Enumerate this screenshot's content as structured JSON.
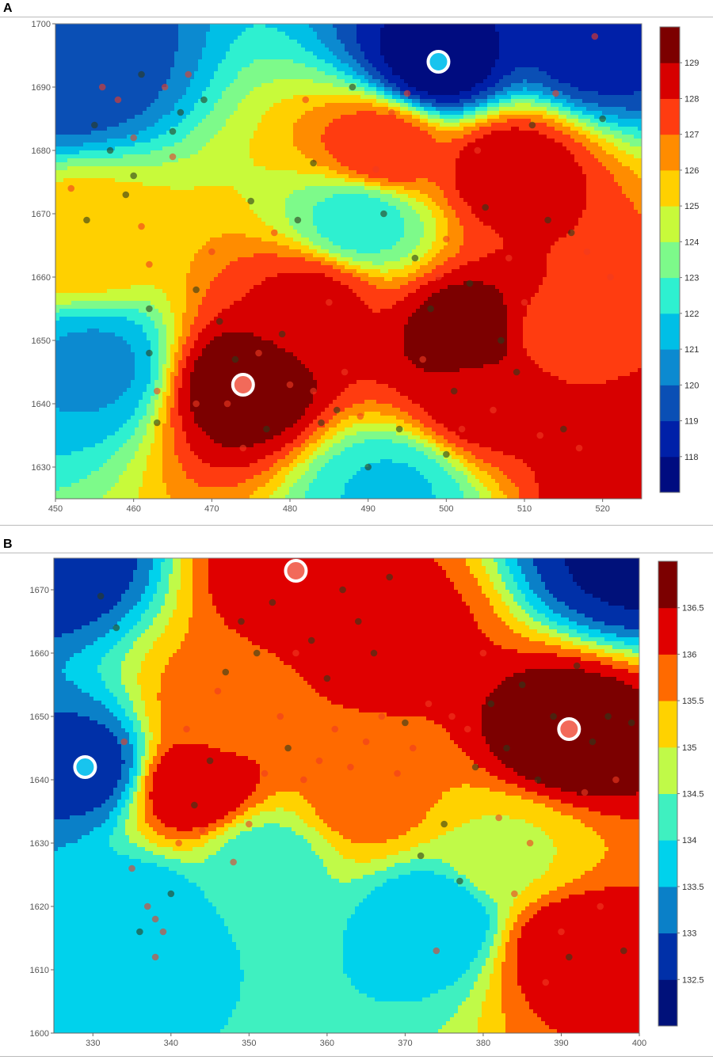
{
  "panels": [
    {
      "letter": "A",
      "chart_data": {
        "type": "heatmap",
        "title": "",
        "xlabel": "",
        "ylabel": "",
        "xlim": [
          450,
          525
        ],
        "ylim": [
          1625,
          1700
        ],
        "x_ticks": [
          "450",
          "460",
          "470",
          "480",
          "490",
          "500",
          "510",
          "520"
        ],
        "y_ticks": [
          "1630",
          "1640",
          "1650",
          "1660",
          "1670",
          "1680",
          "1690",
          "1700"
        ],
        "colorbar": {
          "range": [
            117.5,
            129.5
          ],
          "labels": [
            "118",
            "119",
            "120",
            "121",
            "122",
            "123",
            "124",
            "125",
            "126",
            "127",
            "128",
            "129"
          ],
          "colors": [
            "#000c80",
            "#0020a8",
            "#0a4fb5",
            "#0c8ad0",
            "#00bfe6",
            "#2ef0d0",
            "#7dfa8a",
            "#c8fa3a",
            "#ffd000",
            "#ff8c00",
            "#ff3c10",
            "#d70000",
            "#7c0000"
          ]
        },
        "field_base": 123.6,
        "extrema": [
          {
            "x": 474,
            "y": 1643,
            "value": 129.3
          },
          {
            "x": 503,
            "y": 1651,
            "value": 129.2
          },
          {
            "x": 499,
            "y": 1694,
            "value": 117.8
          },
          {
            "x": 451,
            "y": 1693,
            "value": 119.4
          },
          {
            "x": 519,
            "y": 1697,
            "value": 118.8
          },
          {
            "x": 492,
            "y": 1680,
            "value": 127.5
          },
          {
            "x": 508,
            "y": 1677,
            "value": 128.3
          },
          {
            "x": 524,
            "y": 1628,
            "value": 128.5
          },
          {
            "x": 514,
            "y": 1651,
            "value": 127.4
          },
          {
            "x": 493,
            "y": 1626,
            "value": 122.0
          },
          {
            "x": 455,
            "y": 1646,
            "value": 121.0
          },
          {
            "x": 453,
            "y": 1665,
            "value": 125.6
          },
          {
            "x": 489,
            "y": 1669,
            "value": 122.6
          },
          {
            "x": 505,
            "y": 1641,
            "value": 128.2
          },
          {
            "x": 483,
            "y": 1656,
            "value": 127.9
          }
        ],
        "highlighted_markers": [
          {
            "x": 474,
            "y": 1643,
            "kind": "max"
          },
          {
            "x": 499,
            "y": 1694,
            "kind": "min"
          }
        ],
        "observation_points": [
          [
            452,
            1674,
            "r"
          ],
          [
            454,
            1669,
            "d"
          ],
          [
            455,
            1684,
            "d"
          ],
          [
            456,
            1690,
            "r"
          ],
          [
            457,
            1680,
            "d"
          ],
          [
            458,
            1688,
            "r"
          ],
          [
            459,
            1673,
            "d"
          ],
          [
            460,
            1682,
            "r"
          ],
          [
            460,
            1676,
            "d"
          ],
          [
            461,
            1668,
            "r"
          ],
          [
            461,
            1692,
            "d"
          ],
          [
            462,
            1662,
            "r"
          ],
          [
            462,
            1655,
            "d"
          ],
          [
            462,
            1648,
            "d"
          ],
          [
            463,
            1642,
            "r"
          ],
          [
            463,
            1637,
            "d"
          ],
          [
            464,
            1690,
            "r"
          ],
          [
            465,
            1683,
            "d"
          ],
          [
            465,
            1679,
            "r"
          ],
          [
            466,
            1686,
            "d"
          ],
          [
            467,
            1692,
            "r"
          ],
          [
            468,
            1658,
            "d"
          ],
          [
            468,
            1640,
            "r"
          ],
          [
            469,
            1688,
            "d"
          ],
          [
            470,
            1664,
            "r"
          ],
          [
            471,
            1653,
            "d"
          ],
          [
            472,
            1640,
            "r"
          ],
          [
            473,
            1647,
            "d"
          ],
          [
            474,
            1633,
            "r"
          ],
          [
            475,
            1672,
            "d"
          ],
          [
            476,
            1648,
            "r"
          ],
          [
            477,
            1636,
            "d"
          ],
          [
            478,
            1667,
            "r"
          ],
          [
            479,
            1651,
            "d"
          ],
          [
            480,
            1643,
            "r"
          ],
          [
            481,
            1669,
            "d"
          ],
          [
            482,
            1688,
            "r"
          ],
          [
            483,
            1678,
            "d"
          ],
          [
            483,
            1642,
            "r"
          ],
          [
            484,
            1637,
            "d"
          ],
          [
            485,
            1656,
            "r"
          ],
          [
            486,
            1639,
            "d"
          ],
          [
            487,
            1645,
            "r"
          ],
          [
            488,
            1690,
            "d"
          ],
          [
            489,
            1638,
            "r"
          ],
          [
            490,
            1630,
            "d"
          ],
          [
            491,
            1677,
            "r"
          ],
          [
            492,
            1670,
            "d"
          ],
          [
            493,
            1686,
            "r"
          ],
          [
            494,
            1636,
            "d"
          ],
          [
            495,
            1689,
            "r"
          ],
          [
            496,
            1663,
            "d"
          ],
          [
            497,
            1647,
            "r"
          ],
          [
            498,
            1655,
            "d"
          ],
          [
            499,
            1660,
            "r"
          ],
          [
            500,
            1632,
            "d"
          ],
          [
            500,
            1666,
            "r"
          ],
          [
            501,
            1642,
            "d"
          ],
          [
            502,
            1636,
            "r"
          ],
          [
            503,
            1659,
            "d"
          ],
          [
            504,
            1680,
            "r"
          ],
          [
            505,
            1671,
            "d"
          ],
          [
            506,
            1639,
            "r"
          ],
          [
            507,
            1650,
            "d"
          ],
          [
            508,
            1663,
            "r"
          ],
          [
            509,
            1645,
            "d"
          ],
          [
            510,
            1656,
            "r"
          ],
          [
            511,
            1684,
            "d"
          ],
          [
            512,
            1635,
            "r"
          ],
          [
            513,
            1669,
            "d"
          ],
          [
            514,
            1689,
            "r"
          ],
          [
            515,
            1636,
            "d"
          ],
          [
            516,
            1667,
            "d"
          ],
          [
            517,
            1633,
            "r"
          ],
          [
            518,
            1664,
            "r"
          ],
          [
            519,
            1698,
            "r"
          ],
          [
            520,
            1685,
            "d"
          ],
          [
            521,
            1660,
            "r"
          ]
        ]
      }
    },
    {
      "letter": "B",
      "chart_data": {
        "type": "heatmap",
        "title": "",
        "xlabel": "",
        "ylabel": "",
        "xlim": [
          325,
          400
        ],
        "ylim": [
          1600,
          1675
        ],
        "x_ticks": [
          "330",
          "340",
          "350",
          "360",
          "370",
          "380",
          "390",
          "400"
        ],
        "y_ticks": [
          "1600",
          "1610",
          "1620",
          "1630",
          "1640",
          "1650",
          "1660",
          "1670"
        ],
        "colorbar": {
          "range": [
            132.25,
            136.75
          ],
          "labels": [
            "132.5",
            "133",
            "133.5",
            "134",
            "134.5",
            "135",
            "135.5",
            "136",
            "136.5"
          ],
          "colors": [
            "#00117a",
            "#0030a8",
            "#0a80c8",
            "#00d2ec",
            "#3ff0c0",
            "#c0fa48",
            "#ffd200",
            "#ff6a00",
            "#e00000",
            "#7c0000"
          ]
        },
        "field_base": 134.75,
        "extrema": [
          {
            "x": 329,
            "y": 1642,
            "value": 132.9
          },
          {
            "x": 336,
            "y": 1618,
            "value": 133.6
          },
          {
            "x": 374,
            "y": 1618,
            "value": 133.6
          },
          {
            "x": 325,
            "y": 1675,
            "value": 132.8
          },
          {
            "x": 399,
            "y": 1675,
            "value": 132.6
          },
          {
            "x": 391,
            "y": 1647,
            "value": 136.7
          },
          {
            "x": 391,
            "y": 1614,
            "value": 136.2
          },
          {
            "x": 356,
            "y": 1673,
            "value": 136.2
          },
          {
            "x": 367,
            "y": 1662,
            "value": 136.1
          },
          {
            "x": 343,
            "y": 1639,
            "value": 136.3
          },
          {
            "x": 347,
            "y": 1650,
            "value": 135.7
          },
          {
            "x": 365,
            "y": 1637,
            "value": 135.6
          },
          {
            "x": 383,
            "y": 1628,
            "value": 134.9
          },
          {
            "x": 352,
            "y": 1627,
            "value": 134.3
          }
        ],
        "highlighted_markers": [
          {
            "x": 391,
            "y": 1648,
            "kind": "max"
          },
          {
            "x": 356,
            "y": 1673,
            "kind": "max"
          },
          {
            "x": 329,
            "y": 1642,
            "kind": "min"
          }
        ],
        "observation_points": [
          [
            331,
            1669,
            "d"
          ],
          [
            333,
            1664,
            "d"
          ],
          [
            334,
            1646,
            "r"
          ],
          [
            335,
            1626,
            "r"
          ],
          [
            336,
            1616,
            "d"
          ],
          [
            337,
            1620,
            "r"
          ],
          [
            338,
            1618,
            "r"
          ],
          [
            338,
            1612,
            "r"
          ],
          [
            339,
            1616,
            "r"
          ],
          [
            340,
            1622,
            "d"
          ],
          [
            341,
            1630,
            "r"
          ],
          [
            342,
            1648,
            "r"
          ],
          [
            343,
            1636,
            "d"
          ],
          [
            344,
            1632,
            "r"
          ],
          [
            345,
            1643,
            "d"
          ],
          [
            346,
            1654,
            "r"
          ],
          [
            347,
            1657,
            "d"
          ],
          [
            348,
            1627,
            "r"
          ],
          [
            349,
            1665,
            "d"
          ],
          [
            350,
            1633,
            "r"
          ],
          [
            351,
            1660,
            "d"
          ],
          [
            352,
            1641,
            "r"
          ],
          [
            353,
            1668,
            "d"
          ],
          [
            354,
            1650,
            "r"
          ],
          [
            355,
            1645,
            "d"
          ],
          [
            356,
            1660,
            "r"
          ],
          [
            357,
            1640,
            "r"
          ],
          [
            358,
            1662,
            "d"
          ],
          [
            359,
            1643,
            "r"
          ],
          [
            360,
            1656,
            "d"
          ],
          [
            361,
            1648,
            "r"
          ],
          [
            362,
            1670,
            "d"
          ],
          [
            363,
            1642,
            "r"
          ],
          [
            364,
            1665,
            "d"
          ],
          [
            365,
            1646,
            "r"
          ],
          [
            366,
            1660,
            "d"
          ],
          [
            367,
            1650,
            "r"
          ],
          [
            368,
            1672,
            "d"
          ],
          [
            369,
            1641,
            "r"
          ],
          [
            370,
            1649,
            "d"
          ],
          [
            371,
            1645,
            "r"
          ],
          [
            372,
            1628,
            "d"
          ],
          [
            373,
            1652,
            "r"
          ],
          [
            374,
            1613,
            "r"
          ],
          [
            375,
            1633,
            "d"
          ],
          [
            376,
            1650,
            "r"
          ],
          [
            377,
            1624,
            "d"
          ],
          [
            378,
            1648,
            "r"
          ],
          [
            379,
            1642,
            "d"
          ],
          [
            380,
            1660,
            "r"
          ],
          [
            381,
            1652,
            "d"
          ],
          [
            382,
            1634,
            "r"
          ],
          [
            383,
            1645,
            "d"
          ],
          [
            384,
            1622,
            "r"
          ],
          [
            385,
            1655,
            "d"
          ],
          [
            386,
            1630,
            "r"
          ],
          [
            387,
            1640,
            "d"
          ],
          [
            388,
            1608,
            "r"
          ],
          [
            389,
            1650,
            "d"
          ],
          [
            390,
            1616,
            "r"
          ],
          [
            391,
            1612,
            "d"
          ],
          [
            392,
            1658,
            "d"
          ],
          [
            393,
            1638,
            "r"
          ],
          [
            394,
            1646,
            "d"
          ],
          [
            395,
            1620,
            "r"
          ],
          [
            396,
            1650,
            "d"
          ],
          [
            397,
            1640,
            "r"
          ],
          [
            398,
            1613,
            "d"
          ],
          [
            399,
            1649,
            "d"
          ]
        ]
      }
    }
  ]
}
